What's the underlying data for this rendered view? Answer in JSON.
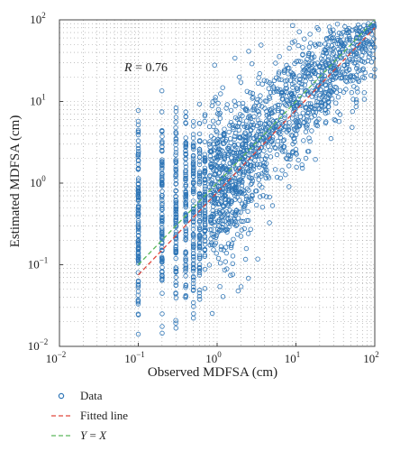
{
  "chart_data": {
    "type": "scatter",
    "xlabel": "Observed MDFSA (cm)",
    "ylabel": "Estimated MDFSA (cm)",
    "x_scale": "log",
    "y_scale": "log",
    "xlim": [
      0.01,
      100
    ],
    "ylim": [
      0.01,
      100
    ],
    "x_ticks": [
      {
        "value": 0.01,
        "base": "10",
        "exp": "−2"
      },
      {
        "value": 0.1,
        "base": "10",
        "exp": "−1"
      },
      {
        "value": 1,
        "base": "10",
        "exp": "0"
      },
      {
        "value": 10,
        "base": "10",
        "exp": "1"
      },
      {
        "value": 100,
        "base": "10",
        "exp": "2"
      }
    ],
    "y_ticks": [
      {
        "value": 0.01,
        "base": "10",
        "exp": "−2"
      },
      {
        "value": 0.1,
        "base": "10",
        "exp": "−1"
      },
      {
        "value": 1,
        "base": "10",
        "exp": "0"
      },
      {
        "value": 10,
        "base": "10",
        "exp": "1"
      },
      {
        "value": 100,
        "base": "10",
        "exp": "2"
      }
    ],
    "grid": true,
    "annotation": {
      "var": "R",
      "text": " = 0.76"
    },
    "series": [
      {
        "name": "Data",
        "kind": "scatter",
        "color": "#2e75b6",
        "columns_x": [
          0.1,
          0.2,
          0.3,
          0.4,
          0.5,
          0.6,
          0.7
        ],
        "columns_y_range": [
          [
            0.012,
            20
          ],
          [
            0.012,
            17
          ],
          [
            0.015,
            15
          ],
          [
            0.02,
            15
          ],
          [
            0.02,
            10
          ],
          [
            0.03,
            10
          ],
          [
            0.04,
            8
          ]
        ],
        "cloud_x_range": [
          0.8,
          100
        ],
        "cloud_y_range": [
          0.012,
          80
        ]
      },
      {
        "name": "Fitted line",
        "kind": "line",
        "color": "#e0473c",
        "dash": "dashed",
        "x": [
          0.1,
          100
        ],
        "y": [
          0.075,
          80
        ]
      },
      {
        "name": "Y = X",
        "kind": "line",
        "color": "#5cb85c",
        "dash": "dashed",
        "x": [
          0.1,
          100
        ],
        "y": [
          0.1,
          100
        ]
      }
    ],
    "legend": {
      "position": "bottom-left",
      "entries": [
        {
          "label": "Data",
          "symbol": "circle",
          "color": "#2e75b6"
        },
        {
          "label": "Fitted line",
          "symbol": "dash",
          "color": "#e0473c"
        },
        {
          "label_var": "Y",
          "label_mid": " = ",
          "label_var2": "X",
          "symbol": "dash",
          "color": "#5cb85c"
        }
      ]
    }
  }
}
